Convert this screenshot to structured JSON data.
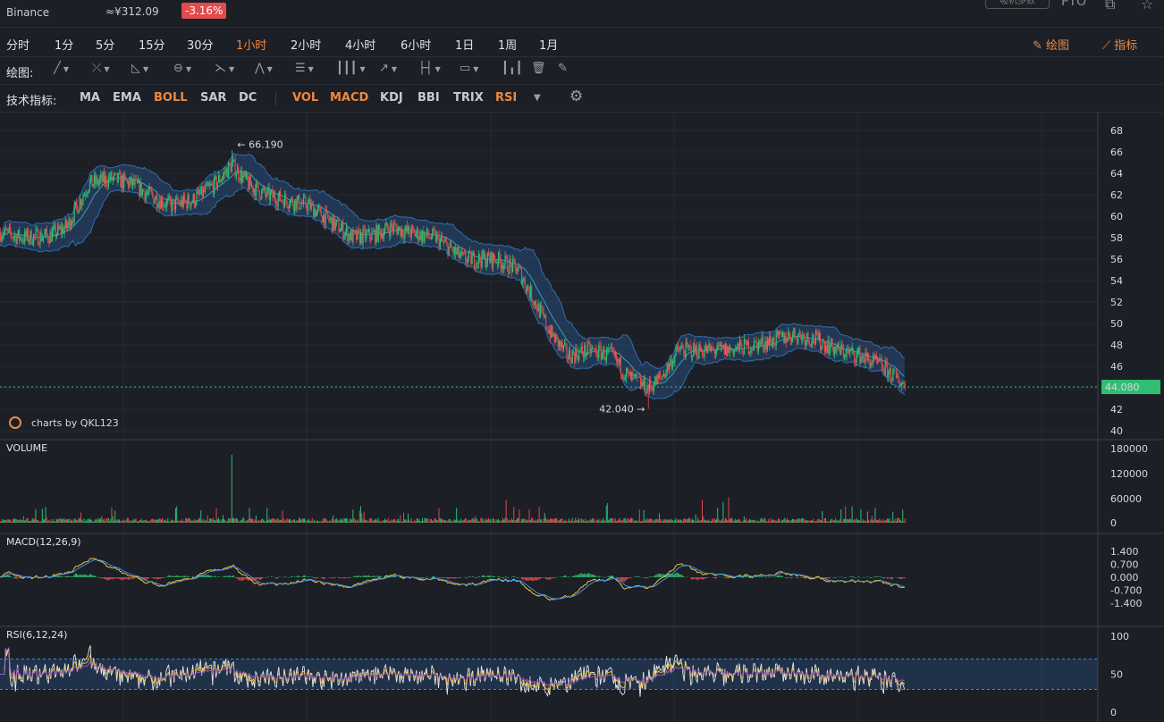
{
  "header": {
    "exchange": "Binance",
    "price": "≈¥312.09",
    "change": "-3.16%",
    "top_button": "吸机多数",
    "mode": "PTO"
  },
  "intervals": [
    {
      "label": "分时",
      "active": false
    },
    {
      "label": "1分",
      "active": false
    },
    {
      "label": "5分",
      "active": false
    },
    {
      "label": "15分",
      "active": false
    },
    {
      "label": "30分",
      "active": false
    },
    {
      "label": "1小时",
      "active": true
    },
    {
      "label": "2小时",
      "active": false
    },
    {
      "label": "4小时",
      "active": false
    },
    {
      "label": "6小时",
      "active": false
    },
    {
      "label": "1日",
      "active": false
    },
    {
      "label": "1周",
      "active": false
    },
    {
      "label": "1月",
      "active": false
    }
  ],
  "tools_right": {
    "draw": "绘图",
    "indicators": "指标"
  },
  "drawbar": {
    "label": "绘图:"
  },
  "indicator_bar": {
    "label": "技术指标:",
    "items": [
      {
        "label": "MA",
        "on": false
      },
      {
        "label": "EMA",
        "on": false
      },
      {
        "label": "BOLL",
        "on": true
      },
      {
        "label": "SAR",
        "on": false
      },
      {
        "label": "DC",
        "on": false
      },
      {
        "label": "VOL",
        "on": true
      },
      {
        "label": "MACD",
        "on": true
      },
      {
        "label": "KDJ",
        "on": false
      },
      {
        "label": "BBI",
        "on": false
      },
      {
        "label": "TRIX",
        "on": false
      },
      {
        "label": "RSI",
        "on": true
      }
    ]
  },
  "colors": {
    "up": "#2fbf71",
    "down": "#e2484b",
    "accent": "#f0883e",
    "boll": "#3a7fc1",
    "last": "#2fbf71"
  },
  "main_pane": {
    "yticks": [
      "68",
      "66",
      "64",
      "62",
      "60",
      "58",
      "56",
      "54",
      "52",
      "50",
      "48",
      "46",
      "44",
      "42",
      "40"
    ],
    "y_range": [
      40,
      68
    ],
    "high_label": "66.190",
    "low_label": "42.040",
    "last_price": "44.080",
    "watermark": "charts by QKL123"
  },
  "volume_pane": {
    "title": "VOLUME",
    "yticks": [
      "180000",
      "120000",
      "60000",
      "0"
    ]
  },
  "macd_pane": {
    "title": "MACD(12,26,9)",
    "yticks": [
      "1.400",
      "0.700",
      "0.000",
      "-0.700",
      "-1.400"
    ]
  },
  "rsi_pane": {
    "title": "RSI(6,12,24)",
    "yticks": [
      "100",
      "50",
      "0"
    ]
  },
  "chart_data": {
    "type": "candlestick",
    "price_anchors": [
      [
        0,
        58.5
      ],
      [
        20,
        58
      ],
      [
        45,
        58.2
      ],
      [
        60,
        59
      ],
      [
        80,
        63
      ],
      [
        100,
        63.5
      ],
      [
        120,
        63
      ],
      [
        135,
        62
      ],
      [
        155,
        61
      ],
      [
        175,
        61.5
      ],
      [
        195,
        63
      ],
      [
        210,
        64.8
      ],
      [
        225,
        63
      ],
      [
        240,
        62
      ],
      [
        260,
        61.5
      ],
      [
        280,
        61
      ],
      [
        300,
        59.5
      ],
      [
        320,
        58
      ],
      [
        340,
        58.3
      ],
      [
        355,
        59
      ],
      [
        370,
        58.5
      ],
      [
        395,
        58
      ],
      [
        420,
        56
      ],
      [
        450,
        56
      ],
      [
        470,
        55
      ],
      [
        485,
        52
      ],
      [
        500,
        49
      ],
      [
        515,
        47
      ],
      [
        535,
        47.5
      ],
      [
        555,
        47
      ],
      [
        570,
        45
      ],
      [
        588,
        44
      ],
      [
        600,
        45
      ],
      [
        615,
        47.5
      ],
      [
        635,
        47.5
      ],
      [
        660,
        47.5
      ],
      [
        685,
        48
      ],
      [
        705,
        48.5
      ],
      [
        720,
        49
      ],
      [
        740,
        48.5
      ],
      [
        760,
        47.5
      ],
      [
        780,
        47
      ],
      [
        800,
        46
      ],
      [
        812,
        45
      ],
      [
        822,
        44.1
      ]
    ],
    "n_candles": 822,
    "high": 66.19,
    "low": 42.04,
    "last": 44.08
  }
}
